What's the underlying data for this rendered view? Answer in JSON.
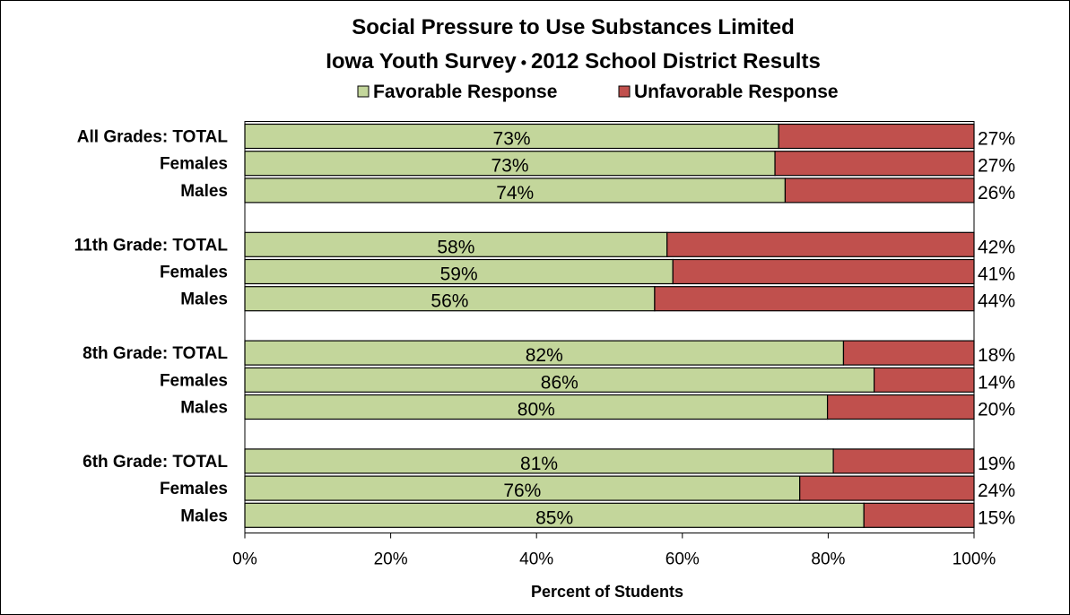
{
  "chart_data": {
    "type": "bar",
    "orientation": "horizontal",
    "stacked": true,
    "title": "Social Pressure to Use Substances Limited",
    "subtitle": "Iowa Youth Survey",
    "subtitle_bullet": "•",
    "subtitle_suffix": "2012 School District Results",
    "xlabel": "Percent of Students",
    "ylabel": "",
    "xlim": [
      0,
      100
    ],
    "x_ticks": [
      "0%",
      "20%",
      "40%",
      "60%",
      "80%",
      "100%"
    ],
    "legend_position": "top",
    "grid": false,
    "groups": [
      {
        "label": "All Grades:  TOTAL",
        "rows": [
          "All Grades:  TOTAL",
          "Females",
          "Males"
        ]
      },
      {
        "label": "11th Grade:  TOTAL",
        "rows": [
          "11th Grade:  TOTAL",
          "Females",
          "Males"
        ]
      },
      {
        "label": "8th Grade:  TOTAL",
        "rows": [
          "8th Grade:  TOTAL",
          "Females",
          "Males"
        ]
      },
      {
        "label": "6th Grade:  TOTAL",
        "rows": [
          "6th Grade:  TOTAL",
          "Females",
          "Males"
        ]
      }
    ],
    "categories": [
      "All Grades:  TOTAL",
      "Females",
      "Males",
      "11th Grade:  TOTAL",
      "Females",
      "Males",
      "8th Grade:  TOTAL",
      "Females",
      "Males",
      "6th Grade:  TOTAL",
      "Females",
      "Males"
    ],
    "series": [
      {
        "name": "Favorable Response",
        "color": "#c3d69b",
        "values": [
          73.2,
          72.7,
          74.1,
          57.9,
          58.7,
          56.2,
          82.1,
          86.3,
          79.9,
          80.7,
          76.1,
          84.9
        ],
        "labels": [
          "73%",
          "73%",
          "74%",
          "58%",
          "59%",
          "56%",
          "82%",
          "86%",
          "80%",
          "81%",
          "76%",
          "85%"
        ]
      },
      {
        "name": "Unfavorable Response",
        "color": "#c0504d",
        "values": [
          26.8,
          27.3,
          25.9,
          42.1,
          41.3,
          43.8,
          17.9,
          13.7,
          20.1,
          19.3,
          23.9,
          15.1
        ],
        "labels": [
          "27%",
          "27%",
          "26%",
          "42%",
          "41%",
          "44%",
          "18%",
          "14%",
          "20%",
          "19%",
          "24%",
          "15%"
        ]
      }
    ]
  }
}
